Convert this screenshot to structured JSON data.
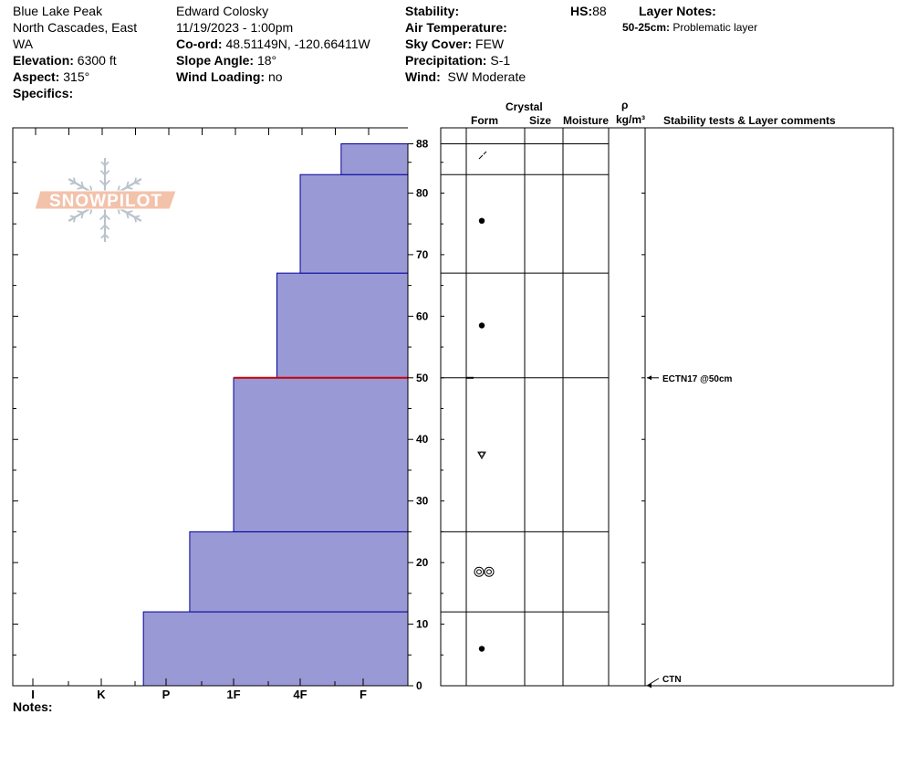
{
  "header": {
    "location": "Blue Lake Peak",
    "range": "North Cascades, East WA",
    "range_line1": "North Cascades, East",
    "range_line2": "WA",
    "elevation_label": "Elevation:",
    "elevation_value": "6300 ft",
    "aspect_label": "Aspect:",
    "aspect_value": "315°",
    "specifics_label": "Specifics:",
    "observer": "Edward Colosky",
    "datetime": "11/19/2023 - 1:00pm",
    "coord_label": "Co-ord:",
    "coord_value": "48.51149N, -120.66411W",
    "slope_label": "Slope Angle:",
    "slope_value": "18°",
    "wind_loading_label": "Wind Loading:",
    "wind_loading_value": "no",
    "stability_label": "Stability:",
    "air_temp_label": "Air Temperature:",
    "sky_label": "Sky Cover:",
    "sky_value": "FEW",
    "precip_label": "Precipitation:",
    "precip_value": "S-1",
    "wind_label": "Wind:",
    "wind_value": "SW Moderate",
    "hs_label": "HS:",
    "hs_value": "88",
    "layer_notes_label": "Layer Notes:",
    "layer_note_range": "50-25cm:",
    "layer_note_text": "Problematic layer"
  },
  "columns": {
    "crystal": "Crystal",
    "form": "Form",
    "size": "Size",
    "moisture": "Moisture",
    "rho": "ρ",
    "density_unit": "kg/m³",
    "stability": "Stability tests & Layer comments"
  },
  "logo_text": "SNOWPILOT",
  "notes_label": "Notes:",
  "colors": {
    "bar_fill": "#9999d6",
    "bar_stroke": "#000099",
    "problem_line": "#cc0000",
    "logo": "#f3c2ab",
    "logo_flake": "#b9c3cb"
  },
  "chart_data": {
    "type": "bar",
    "orientation": "horizontal",
    "x_axis_labels": [
      "I",
      "K",
      "P",
      "1F",
      "4F",
      "F"
    ],
    "y_ticks": [
      0,
      10,
      20,
      30,
      40,
      50,
      60,
      70,
      80,
      88
    ],
    "ylim": [
      0,
      88
    ],
    "hardness_scale": {
      "I": 1,
      "K": 2,
      "P": 3,
      "1F": 4,
      "4F": 5,
      "F": 6
    },
    "layers": [
      {
        "bottom": 0,
        "top": 12,
        "hardness": "P-",
        "hardness_value": 2.65
      },
      {
        "bottom": 12,
        "top": 25,
        "hardness": "P+",
        "hardness_value": 3.35
      },
      {
        "bottom": 25,
        "top": 50,
        "hardness": "1F",
        "hardness_value": 4
      },
      {
        "bottom": 50,
        "top": 67,
        "hardness": "1F+",
        "hardness_value": 4.65
      },
      {
        "bottom": 67,
        "top": 83,
        "hardness": "4F",
        "hardness_value": 5
      },
      {
        "bottom": 83,
        "top": 88,
        "hardness": "F-",
        "hardness_value": 5.65
      }
    ],
    "problem_layer_height": 50,
    "grain_forms": [
      {
        "height": 86,
        "form": "PP/DF"
      },
      {
        "height": 75.5,
        "form": "RG"
      },
      {
        "height": 58.5,
        "form": "RG"
      },
      {
        "height": 37.5,
        "form": "FCxr"
      },
      {
        "height": 18.5,
        "form": "MF"
      },
      {
        "height": 6,
        "form": "RG"
      }
    ],
    "stability_tests": [
      {
        "height": 50,
        "text": "ECTN17 @50cm"
      },
      {
        "height": 0,
        "text": "CTN"
      }
    ]
  }
}
